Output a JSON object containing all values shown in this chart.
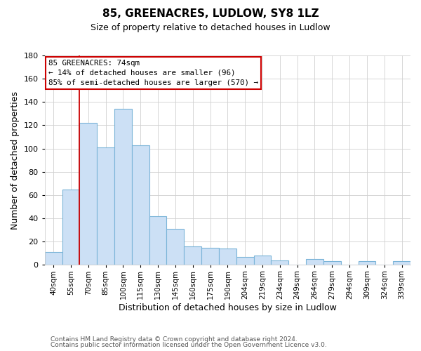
{
  "title": "85, GREENACRES, LUDLOW, SY8 1LZ",
  "subtitle": "Size of property relative to detached houses in Ludlow",
  "xlabel": "Distribution of detached houses by size in Ludlow",
  "ylabel": "Number of detached properties",
  "bar_labels": [
    "40sqm",
    "55sqm",
    "70sqm",
    "85sqm",
    "100sqm",
    "115sqm",
    "130sqm",
    "145sqm",
    "160sqm",
    "175sqm",
    "190sqm",
    "204sqm",
    "219sqm",
    "234sqm",
    "249sqm",
    "264sqm",
    "279sqm",
    "294sqm",
    "309sqm",
    "324sqm",
    "339sqm"
  ],
  "bar_values": [
    11,
    65,
    122,
    101,
    134,
    103,
    42,
    31,
    16,
    15,
    14,
    7,
    8,
    4,
    0,
    5,
    3,
    0,
    3,
    0,
    3
  ],
  "bar_color": "#cce0f5",
  "bar_edge_color": "#7ab4d8",
  "vline_color": "#cc0000",
  "ylim": [
    0,
    180
  ],
  "yticks": [
    0,
    20,
    40,
    60,
    80,
    100,
    120,
    140,
    160,
    180
  ],
  "annotation_title": "85 GREENACRES: 74sqm",
  "annotation_line1": "← 14% of detached houses are smaller (96)",
  "annotation_line2": "85% of semi-detached houses are larger (570) →",
  "footnote1": "Contains HM Land Registry data © Crown copyright and database right 2024.",
  "footnote2": "Contains public sector information licensed under the Open Government Licence v3.0.",
  "background_color": "#ffffff",
  "grid_color": "#d0d0d0"
}
